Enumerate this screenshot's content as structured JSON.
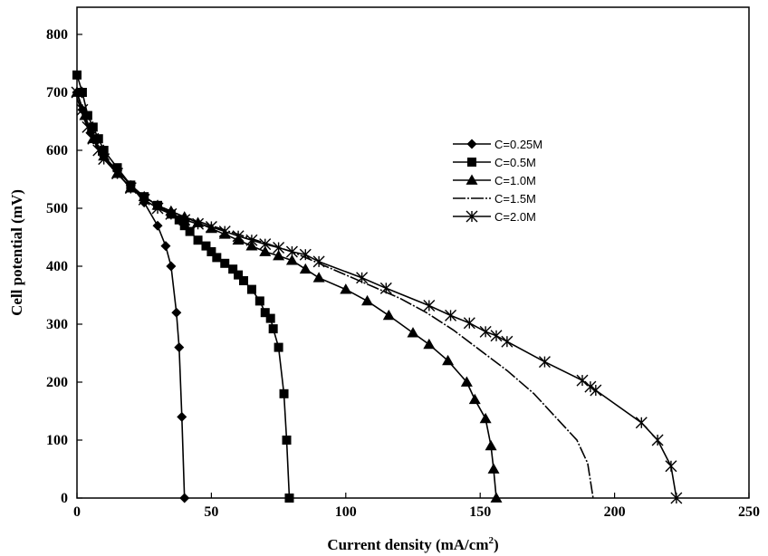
{
  "chart_data": {
    "type": "line",
    "title": "",
    "xlabel": "Current density (mA/cm",
    "xlabel_sup": "2",
    "xlabel_end": ")",
    "ylabel": "Cell potential (mV)",
    "xlim": [
      0,
      250
    ],
    "ylim": [
      0,
      850
    ],
    "xticks": [
      "0",
      "50",
      "100",
      "150",
      "200",
      "250"
    ],
    "yticks": [
      "0",
      "100",
      "200",
      "300",
      "400",
      "500",
      "600",
      "700",
      "800"
    ],
    "grid": false,
    "legend_position": "right-middle",
    "series": [
      {
        "name": "C=0.25M",
        "marker": "diamond",
        "points": [
          [
            0,
            700
          ],
          [
            2,
            670
          ],
          [
            5,
            630
          ],
          [
            10,
            590
          ],
          [
            15,
            565
          ],
          [
            20,
            540
          ],
          [
            25,
            510
          ],
          [
            30,
            470
          ],
          [
            33,
            435
          ],
          [
            35,
            400
          ],
          [
            37,
            320
          ],
          [
            38,
            260
          ],
          [
            39,
            140
          ],
          [
            40,
            0
          ]
        ]
      },
      {
        "name": "C=0.5M",
        "marker": "square",
        "points": [
          [
            0,
            730
          ],
          [
            2,
            700
          ],
          [
            4,
            660
          ],
          [
            6,
            640
          ],
          [
            8,
            620
          ],
          [
            10,
            600
          ],
          [
            15,
            570
          ],
          [
            20,
            540
          ],
          [
            25,
            520
          ],
          [
            30,
            505
          ],
          [
            35,
            490
          ],
          [
            38,
            480
          ],
          [
            40,
            470
          ],
          [
            42,
            460
          ],
          [
            45,
            445
          ],
          [
            48,
            435
          ],
          [
            50,
            425
          ],
          [
            52,
            415
          ],
          [
            55,
            405
          ],
          [
            58,
            395
          ],
          [
            60,
            385
          ],
          [
            62,
            375
          ],
          [
            65,
            360
          ],
          [
            68,
            340
          ],
          [
            70,
            320
          ],
          [
            72,
            310
          ],
          [
            73,
            292
          ],
          [
            75,
            260
          ],
          [
            77,
            180
          ],
          [
            78,
            100
          ],
          [
            79,
            0
          ]
        ]
      },
      {
        "name": "C=1.0M",
        "marker": "triangle",
        "points": [
          [
            0,
            700
          ],
          [
            3,
            660
          ],
          [
            6,
            620
          ],
          [
            10,
            590
          ],
          [
            15,
            560
          ],
          [
            20,
            535
          ],
          [
            25,
            520
          ],
          [
            30,
            505
          ],
          [
            35,
            495
          ],
          [
            40,
            485
          ],
          [
            45,
            475
          ],
          [
            50,
            465
          ],
          [
            55,
            455
          ],
          [
            60,
            445
          ],
          [
            65,
            435
          ],
          [
            70,
            425
          ],
          [
            75,
            418
          ],
          [
            80,
            410
          ],
          [
            85,
            395
          ],
          [
            90,
            380
          ],
          [
            100,
            360
          ],
          [
            108,
            340
          ],
          [
            116,
            315
          ],
          [
            125,
            285
          ],
          [
            131,
            265
          ],
          [
            138,
            237
          ],
          [
            145,
            200
          ],
          [
            148,
            170
          ],
          [
            152,
            137
          ],
          [
            154,
            90
          ],
          [
            155,
            50
          ],
          [
            156,
            0
          ]
        ]
      },
      {
        "name": "C=1.5M",
        "marker": "dash",
        "points": [
          [
            0,
            690
          ],
          [
            3,
            650
          ],
          [
            6,
            615
          ],
          [
            10,
            585
          ],
          [
            15,
            560
          ],
          [
            20,
            535
          ],
          [
            30,
            505
          ],
          [
            40,
            485
          ],
          [
            50,
            470
          ],
          [
            60,
            455
          ],
          [
            70,
            440
          ],
          [
            80,
            425
          ],
          [
            90,
            405
          ],
          [
            100,
            385
          ],
          [
            110,
            365
          ],
          [
            120,
            345
          ],
          [
            130,
            320
          ],
          [
            140,
            290
          ],
          [
            150,
            255
          ],
          [
            160,
            220
          ],
          [
            170,
            180
          ],
          [
            180,
            130
          ],
          [
            186,
            100
          ],
          [
            190,
            60
          ],
          [
            192,
            0
          ]
        ]
      },
      {
        "name": "C=2.0M",
        "marker": "asterisk",
        "points": [
          [
            0,
            700
          ],
          [
            2,
            670
          ],
          [
            4,
            640
          ],
          [
            6,
            620
          ],
          [
            8,
            600
          ],
          [
            10,
            585
          ],
          [
            15,
            560
          ],
          [
            20,
            535
          ],
          [
            25,
            515
          ],
          [
            30,
            500
          ],
          [
            35,
            490
          ],
          [
            40,
            480
          ],
          [
            45,
            473
          ],
          [
            50,
            468
          ],
          [
            55,
            460
          ],
          [
            60,
            452
          ],
          [
            65,
            445
          ],
          [
            70,
            438
          ],
          [
            75,
            432
          ],
          [
            80,
            425
          ],
          [
            85,
            420
          ],
          [
            90,
            408
          ],
          [
            106,
            380
          ],
          [
            115,
            362
          ],
          [
            131,
            332
          ],
          [
            139,
            315
          ],
          [
            146,
            302
          ],
          [
            152,
            287
          ],
          [
            156,
            280
          ],
          [
            160,
            270
          ],
          [
            174,
            235
          ],
          [
            188,
            203
          ],
          [
            191,
            192
          ],
          [
            193,
            186
          ],
          [
            210,
            130
          ],
          [
            216,
            100
          ],
          [
            221,
            55
          ],
          [
            223,
            0
          ]
        ]
      }
    ]
  }
}
